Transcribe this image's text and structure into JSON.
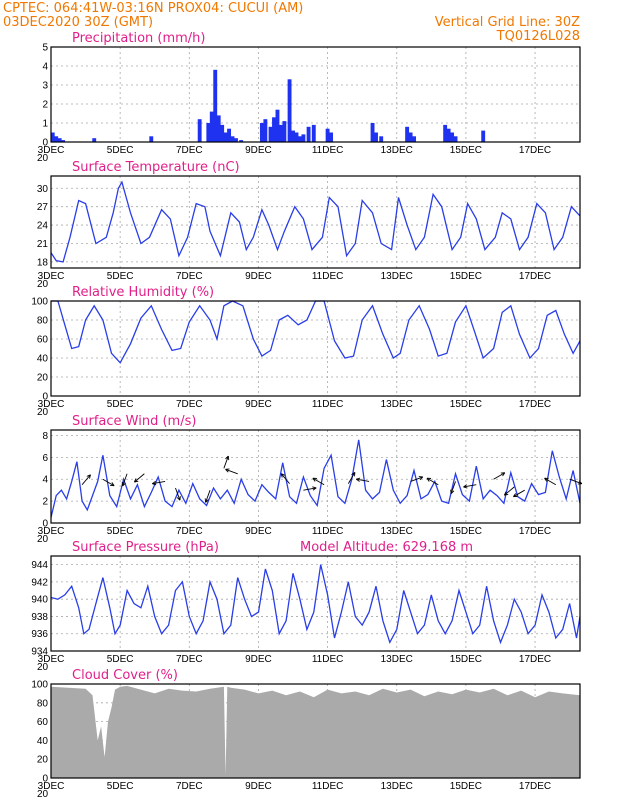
{
  "header": {
    "line1": "CPTEC:   064:41W-03:16N   PROX04: CUCUI (AM)",
    "line2": "03DEC2020 30Z (GMT)",
    "grid_note": "Vertical Grid Line: 30Z",
    "run_code": "TQ0126L028"
  },
  "x_axis": {
    "labels": [
      "3DEC",
      "5DEC",
      "7DEC",
      "9DEC",
      "11DEC",
      "13DEC",
      "15DEC",
      "17DEC"
    ],
    "positions": [
      0,
      2,
      4,
      6,
      8,
      10,
      12,
      14
    ],
    "start_under_label": "20",
    "range": [
      0,
      15.3
    ]
  },
  "colors": {
    "header": "#f07800",
    "title": "#e0208a",
    "series": "#2a3ee8",
    "bars": "#1e32f0",
    "cloud": "#aaaaaa"
  },
  "chart_data": [
    {
      "key": "precip",
      "type": "bar",
      "title": "Precipitation (mm/h)",
      "ylim": [
        0,
        5
      ],
      "yticks": [
        0,
        1,
        2,
        3,
        4,
        5
      ],
      "x": [
        0.05,
        0.15,
        0.25,
        0.35,
        1.25,
        2.9,
        4.3,
        4.55,
        4.65,
        4.75,
        4.85,
        4.95,
        5.05,
        5.15,
        5.25,
        5.35,
        5.5,
        6.1,
        6.2,
        6.35,
        6.45,
        6.55,
        6.65,
        6.75,
        6.9,
        7.0,
        7.1,
        7.2,
        7.3,
        7.45,
        7.6,
        8.0,
        8.1,
        9.3,
        9.4,
        9.55,
        10.3,
        10.4,
        10.5,
        11.4,
        11.5,
        11.6,
        11.7,
        12.5
      ],
      "values": [
        0.5,
        0.3,
        0.2,
        0.1,
        0.2,
        0.3,
        1.2,
        1.0,
        1.6,
        3.8,
        1.4,
        0.9,
        0.5,
        0.7,
        0.3,
        0.2,
        0.1,
        1.0,
        1.2,
        0.8,
        1.3,
        1.7,
        0.9,
        1.1,
        3.3,
        0.6,
        0.5,
        0.3,
        0.4,
        0.8,
        0.9,
        0.7,
        0.5,
        1.0,
        0.5,
        0.3,
        0.8,
        0.5,
        0.3,
        0.9,
        0.7,
        0.5,
        0.3,
        0.6
      ]
    },
    {
      "key": "temp",
      "type": "line",
      "title": "Surface Temperature (nC)",
      "ylim": [
        17,
        32
      ],
      "yticks": [
        18,
        21,
        24,
        27,
        30
      ],
      "x": [
        0,
        0.15,
        0.35,
        0.55,
        0.8,
        1.0,
        1.3,
        1.6,
        1.8,
        1.95,
        2.05,
        2.3,
        2.6,
        2.85,
        3.2,
        3.45,
        3.7,
        3.95,
        4.2,
        4.45,
        4.6,
        4.9,
        5.2,
        5.45,
        5.65,
        5.85,
        6.1,
        6.3,
        6.55,
        6.75,
        7.05,
        7.3,
        7.55,
        7.85,
        8.05,
        8.3,
        8.55,
        8.8,
        9.0,
        9.3,
        9.55,
        9.85,
        10.05,
        10.3,
        10.55,
        10.8,
        11.05,
        11.3,
        11.6,
        11.85,
        12.05,
        12.3,
        12.55,
        12.85,
        13.05,
        13.3,
        13.55,
        13.8,
        14.05,
        14.3,
        14.55,
        14.8,
        15.05,
        15.3
      ],
      "values": [
        19.5,
        18.2,
        18.0,
        22,
        28,
        27.5,
        21,
        22,
        26,
        30,
        31,
        26,
        21,
        22,
        26.5,
        25,
        19,
        22,
        27.5,
        27,
        23,
        19,
        26,
        24.5,
        20,
        22,
        26.5,
        24,
        20,
        23,
        27,
        25,
        20,
        22,
        28.5,
        27,
        19,
        21,
        28,
        26,
        21,
        20,
        28.5,
        24,
        20,
        22,
        29,
        27,
        20,
        22,
        27.5,
        25,
        20,
        22,
        26,
        25,
        20,
        22,
        27.5,
        26,
        20,
        22,
        27,
        25.5
      ]
    },
    {
      "key": "rh",
      "type": "line",
      "title": "Relative Humidity (%)",
      "ylim": [
        0,
        100
      ],
      "yticks": [
        0,
        20,
        40,
        60,
        80,
        100
      ],
      "x": [
        0,
        0.2,
        0.4,
        0.6,
        0.8,
        1.0,
        1.25,
        1.5,
        1.75,
        2.0,
        2.3,
        2.6,
        2.9,
        3.2,
        3.5,
        3.75,
        4.0,
        4.3,
        4.6,
        4.8,
        5.0,
        5.25,
        5.55,
        5.85,
        6.1,
        6.35,
        6.6,
        6.85,
        7.15,
        7.4,
        7.65,
        7.9,
        8.2,
        8.5,
        8.75,
        9.0,
        9.3,
        9.6,
        9.9,
        10.1,
        10.35,
        10.65,
        10.95,
        11.2,
        11.45,
        11.7,
        12.0,
        12.25,
        12.5,
        12.8,
        13.05,
        13.3,
        13.55,
        13.85,
        14.1,
        14.35,
        14.6,
        14.85,
        15.1,
        15.3
      ],
      "values": [
        100,
        100,
        75,
        50,
        52,
        80,
        95,
        80,
        45,
        35,
        55,
        82,
        95,
        70,
        48,
        50,
        78,
        95,
        80,
        60,
        95,
        100,
        95,
        60,
        42,
        48,
        80,
        85,
        75,
        80,
        100,
        100,
        58,
        40,
        42,
        80,
        95,
        65,
        40,
        45,
        80,
        95,
        70,
        42,
        45,
        78,
        95,
        68,
        40,
        50,
        88,
        95,
        65,
        40,
        50,
        85,
        90,
        65,
        45,
        58
      ]
    },
    {
      "key": "wind",
      "type": "line",
      "title": "Surface Wind (m/s)",
      "ylim": [
        0,
        8.5
      ],
      "yticks": [
        0,
        2,
        4,
        6,
        8
      ],
      "x": [
        0,
        0.15,
        0.3,
        0.45,
        0.6,
        0.75,
        0.9,
        1.05,
        1.2,
        1.35,
        1.5,
        1.7,
        1.9,
        2.1,
        2.3,
        2.5,
        2.7,
        2.9,
        3.1,
        3.3,
        3.5,
        3.7,
        3.9,
        4.1,
        4.3,
        4.5,
        4.7,
        4.9,
        5.1,
        5.3,
        5.5,
        5.7,
        5.9,
        6.1,
        6.3,
        6.5,
        6.7,
        6.9,
        7.1,
        7.3,
        7.5,
        7.7,
        7.9,
        8.1,
        8.3,
        8.5,
        8.7,
        8.9,
        9.1,
        9.3,
        9.5,
        9.7,
        9.9,
        10.1,
        10.3,
        10.5,
        10.7,
        10.9,
        11.1,
        11.3,
        11.5,
        11.7,
        11.9,
        12.1,
        12.3,
        12.5,
        12.7,
        12.9,
        13.1,
        13.3,
        13.5,
        13.7,
        13.9,
        14.1,
        14.3,
        14.5,
        14.7,
        14.9,
        15.1,
        15.3
      ],
      "values": [
        0.5,
        2.5,
        3.0,
        2.2,
        3.8,
        5.6,
        2.0,
        1.2,
        2.5,
        3.8,
        6.2,
        2.5,
        1.5,
        4.0,
        2.2,
        3.5,
        1.5,
        2.8,
        4.2,
        2.0,
        1.5,
        3.0,
        1.8,
        3.6,
        2.2,
        1.6,
        3.2,
        2.2,
        3.0,
        1.8,
        4.0,
        2.6,
        2.0,
        3.5,
        2.8,
        2.2,
        5.5,
        2.4,
        1.8,
        4.2,
        2.5,
        1.6,
        5.0,
        6.2,
        2.4,
        1.8,
        4.0,
        7.6,
        3.0,
        2.2,
        2.8,
        5.8,
        3.0,
        1.8,
        2.5,
        4.8,
        2.2,
        2.6,
        3.8,
        2.0,
        1.8,
        4.5,
        2.6,
        2.0,
        5.2,
        2.2,
        3.0,
        2.5,
        1.8,
        4.6,
        2.4,
        2.0,
        3.6,
        2.6,
        2.8,
        6.6,
        4.2,
        2.2,
        4.8,
        1.8
      ],
      "arrows": [
        {
          "x": 0.9,
          "speed": 3.5,
          "dir": 40
        },
        {
          "x": 1.5,
          "speed": 4.0,
          "dir": 120
        },
        {
          "x": 2.2,
          "speed": 4.5,
          "dir": 200
        },
        {
          "x": 2.7,
          "speed": 4.5,
          "dir": 230
        },
        {
          "x": 3.3,
          "speed": 3.8,
          "dir": 260
        },
        {
          "x": 3.6,
          "speed": 3.2,
          "dir": 160
        },
        {
          "x": 4.6,
          "speed": 3.0,
          "dir": 200
        },
        {
          "x": 5.0,
          "speed": 5.0,
          "dir": 20
        },
        {
          "x": 5.4,
          "speed": 4.5,
          "dir": 290
        },
        {
          "x": 6.9,
          "speed": 3.6,
          "dir": 320
        },
        {
          "x": 7.3,
          "speed": 3.0,
          "dir": 80
        },
        {
          "x": 7.9,
          "speed": 3.5,
          "dir": 300
        },
        {
          "x": 8.6,
          "speed": 3.6,
          "dir": 30
        },
        {
          "x": 9.2,
          "speed": 3.8,
          "dir": 280
        },
        {
          "x": 10.4,
          "speed": 3.8,
          "dir": 70
        },
        {
          "x": 11.2,
          "speed": 3.5,
          "dir": 300
        },
        {
          "x": 11.7,
          "speed": 3.8,
          "dir": 200
        },
        {
          "x": 12.3,
          "speed": 3.5,
          "dir": 260
        },
        {
          "x": 12.8,
          "speed": 4.0,
          "dir": 60
        },
        {
          "x": 13.4,
          "speed": 3.3,
          "dir": 230
        },
        {
          "x": 13.7,
          "speed": 3.0,
          "dir": 240
        },
        {
          "x": 14.6,
          "speed": 3.5,
          "dir": 300
        },
        {
          "x": 15.0,
          "speed": 4.0,
          "dir": 110
        }
      ]
    },
    {
      "key": "pres",
      "type": "line",
      "title": "Surface Pressure (hPa)",
      "annotation": "Model Altitude: 629.168  m",
      "ylim": [
        934,
        945
      ],
      "yticks": [
        934,
        936,
        938,
        940,
        942,
        944
      ],
      "x": [
        0,
        0.2,
        0.4,
        0.6,
        0.8,
        0.95,
        1.1,
        1.3,
        1.5,
        1.7,
        1.85,
        2.0,
        2.2,
        2.4,
        2.6,
        2.8,
        3.0,
        3.2,
        3.4,
        3.6,
        3.8,
        4.0,
        4.2,
        4.4,
        4.6,
        4.8,
        5.0,
        5.2,
        5.4,
        5.6,
        5.8,
        6.0,
        6.2,
        6.4,
        6.6,
        6.8,
        7.0,
        7.2,
        7.4,
        7.6,
        7.8,
        8.0,
        8.2,
        8.4,
        8.6,
        8.8,
        9.0,
        9.2,
        9.4,
        9.6,
        9.8,
        10.0,
        10.2,
        10.4,
        10.6,
        10.8,
        11.0,
        11.2,
        11.4,
        11.6,
        11.8,
        12.0,
        12.2,
        12.4,
        12.6,
        12.8,
        13.0,
        13.2,
        13.4,
        13.6,
        13.8,
        14.0,
        14.2,
        14.4,
        14.6,
        14.8,
        15.0,
        15.2,
        15.3
      ],
      "values": [
        940.2,
        940.0,
        940.5,
        941.5,
        939.0,
        936.0,
        936.5,
        939.5,
        942.5,
        939.0,
        936.0,
        937.0,
        941.0,
        939.5,
        939.0,
        941.5,
        938.0,
        936.0,
        937.0,
        941.0,
        942.0,
        938.0,
        936.0,
        937.5,
        942.0,
        940.0,
        936.0,
        937.0,
        942.5,
        940.0,
        938.0,
        938.5,
        943.5,
        941.0,
        936.0,
        937.5,
        943.0,
        940.0,
        936.5,
        938.5,
        944.0,
        940.5,
        935.5,
        938.5,
        942.0,
        938.0,
        937.0,
        938.5,
        941.5,
        937.5,
        935.0,
        936.5,
        941.0,
        938.5,
        936.0,
        937.0,
        940.5,
        937.5,
        936.0,
        937.5,
        941.0,
        938.5,
        936.0,
        937.0,
        941.5,
        937.5,
        935.0,
        937.0,
        940.0,
        938.5,
        936.0,
        937.0,
        940.5,
        938.5,
        935.5,
        936.5,
        939.5,
        935.5,
        938.0
      ]
    },
    {
      "key": "cloud",
      "type": "area",
      "title": "Cloud Cover (%)",
      "ylim": [
        0,
        100
      ],
      "yticks": [
        0,
        20,
        40,
        60,
        80,
        100
      ],
      "x": [
        0,
        0.5,
        1.0,
        1.2,
        1.35,
        1.45,
        1.55,
        1.65,
        1.75,
        1.85,
        2.0,
        2.2,
        2.6,
        3.0,
        3.4,
        3.8,
        4.2,
        4.6,
        5.0,
        5.05,
        5.1,
        5.2,
        5.6,
        6.0,
        6.4,
        6.8,
        7.2,
        7.6,
        8.0,
        8.4,
        8.8,
        9.2,
        9.6,
        10.0,
        10.4,
        10.8,
        11.2,
        11.6,
        12.0,
        12.4,
        12.8,
        13.2,
        13.6,
        14.0,
        14.4,
        14.8,
        15.3
      ],
      "values": [
        97,
        96,
        95,
        88,
        40,
        55,
        22,
        60,
        75,
        94,
        97,
        98,
        94,
        90,
        95,
        93,
        92,
        95,
        97,
        3,
        97,
        96,
        94,
        90,
        93,
        88,
        92,
        86,
        94,
        90,
        92,
        88,
        95,
        91,
        94,
        87,
        92,
        89,
        94,
        91,
        95,
        88,
        93,
        86,
        92,
        90,
        88
      ]
    }
  ]
}
